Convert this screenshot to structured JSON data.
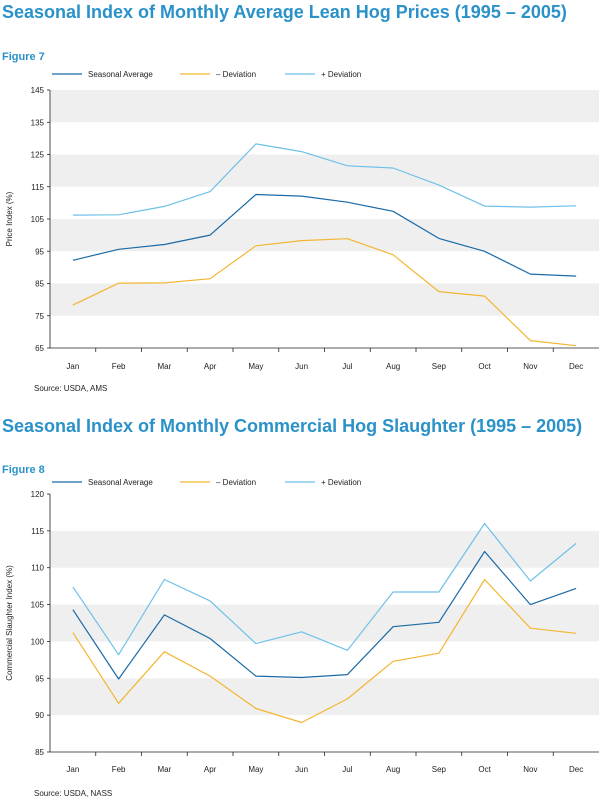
{
  "colors": {
    "seasonal": "#1a6aa6",
    "minus": "#f2b631",
    "plus": "#6ec1e8",
    "band": "#efefef",
    "axis": "#222222",
    "title": "#2a92c9"
  },
  "chart_data": [
    {
      "type": "line",
      "title": "Seasonal Index of Monthly Average Lean Hog Prices (1995 – 2005)",
      "figure": "Figure 7",
      "ylabel": "Price Index (%)",
      "xlabel": "",
      "source": "Source: USDA, AMS",
      "ylim": [
        65,
        145
      ],
      "yticks": [
        65,
        75,
        85,
        95,
        105,
        115,
        125,
        135,
        145
      ],
      "categories": [
        "Jan",
        "Feb",
        "Mar",
        "Apr",
        "May",
        "Jun",
        "Jul",
        "Aug",
        "Sep",
        "Oct",
        "Nov",
        "Dec"
      ],
      "grid": "alternating horizontal bands",
      "legend_position": "top",
      "series": [
        {
          "name": "Seasonal Average",
          "color_key": "seasonal",
          "values": [
            92.2,
            95.6,
            97.1,
            100.0,
            112.6,
            112.1,
            110.2,
            107.4,
            99.0,
            95.0,
            87.9,
            87.3
          ]
        },
        {
          "name": "– Deviation",
          "color_key": "minus",
          "values": [
            78.3,
            85.1,
            85.2,
            86.5,
            96.7,
            98.3,
            98.9,
            93.9,
            82.5,
            81.1,
            67.3,
            65.7
          ]
        },
        {
          "name": "+ Deviation",
          "color_key": "plus",
          "values": [
            106.2,
            106.3,
            108.9,
            113.5,
            128.3,
            125.9,
            121.5,
            120.8,
            115.5,
            109.0,
            108.7,
            109.1
          ]
        }
      ]
    },
    {
      "type": "line",
      "title": "Seasonal Index of Monthly Commercial Hog Slaughter (1995 – 2005)",
      "figure": "Figure 8",
      "ylabel": "Commercial Slaughter Index (%)",
      "xlabel": "",
      "source": "Source: USDA, NASS",
      "ylim": [
        85,
        120
      ],
      "yticks": [
        85,
        90,
        95,
        100,
        105,
        110,
        115,
        120
      ],
      "categories": [
        "Jan",
        "Feb",
        "Mar",
        "Apr",
        "May",
        "Jun",
        "Jul",
        "Aug",
        "Sep",
        "Oct",
        "Nov",
        "Dec"
      ],
      "grid": "alternating horizontal bands",
      "legend_position": "top",
      "series": [
        {
          "name": "Seasonal Average",
          "color_key": "seasonal",
          "values": [
            104.3,
            94.9,
            103.6,
            100.4,
            95.3,
            95.1,
            95.5,
            102.0,
            102.6,
            112.2,
            105.0,
            107.2
          ]
        },
        {
          "name": "– Deviation",
          "color_key": "minus",
          "values": [
            101.2,
            91.6,
            98.6,
            95.3,
            90.9,
            89.0,
            92.2,
            97.3,
            98.4,
            108.4,
            101.8,
            101.1
          ]
        },
        {
          "name": "+ Deviation",
          "color_key": "plus",
          "values": [
            107.4,
            98.2,
            108.4,
            105.5,
            99.7,
            101.3,
            98.8,
            106.7,
            106.7,
            116.0,
            108.2,
            113.3
          ]
        }
      ]
    }
  ]
}
